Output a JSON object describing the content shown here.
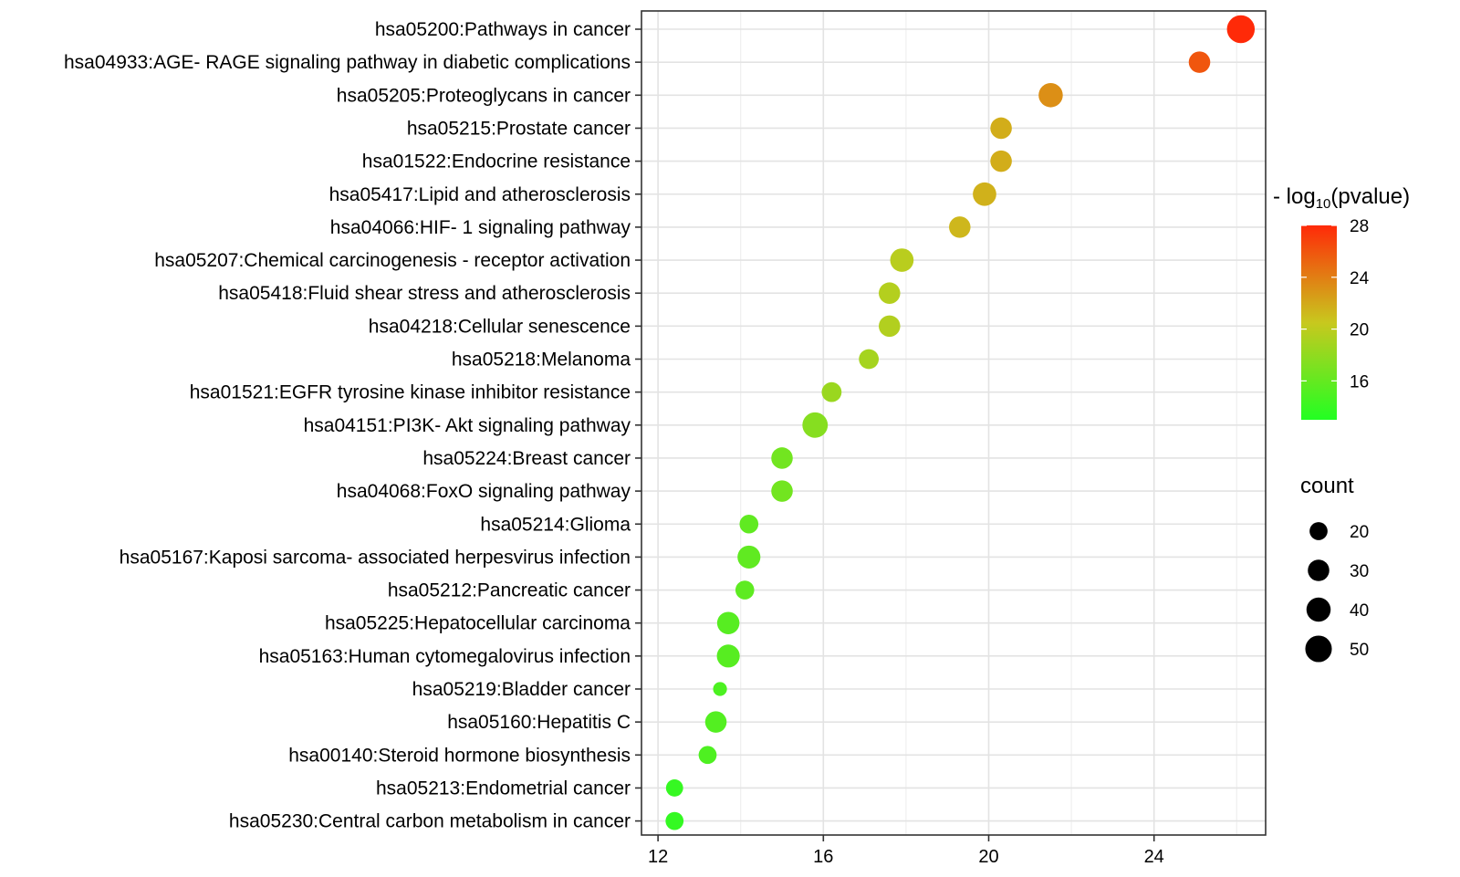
{
  "chart_data": {
    "type": "scatter",
    "subtype": "bubble",
    "title": "",
    "xlabel": "",
    "ylabel": "",
    "xlim": [
      11.6,
      26.7
    ],
    "xticks": [
      12,
      16,
      20,
      24
    ],
    "grid": true,
    "categories": [
      "hsa05200:Pathways in cancer",
      "hsa04933:AGE- RAGE signaling pathway in diabetic complications",
      "hsa05205:Proteoglycans in cancer",
      "hsa05215:Prostate cancer",
      "hsa01522:Endocrine resistance",
      "hsa05417:Lipid and atherosclerosis",
      "hsa04066:HIF- 1 signaling pathway",
      "hsa05207:Chemical carcinogenesis -  receptor activation",
      "hsa05418:Fluid shear stress and atherosclerosis",
      "hsa04218:Cellular senescence",
      "hsa05218:Melanoma",
      "hsa01521:EGFR tyrosine kinase inhibitor resistance",
      "hsa04151:PI3K- Akt signaling pathway",
      "hsa05224:Breast cancer",
      "hsa04068:FoxO signaling pathway",
      "hsa05214:Glioma",
      "hsa05167:Kaposi sarcoma- associated herpesvirus infection",
      "hsa05212:Pancreatic cancer",
      "hsa05225:Hepatocellular carcinoma",
      "hsa05163:Human cytomegalovirus infection",
      "hsa05219:Bladder cancer",
      "hsa05160:Hepatitis C",
      "hsa00140:Steroid hormone biosynthesis",
      "hsa05213:Endometrial cancer",
      "hsa05230:Central carbon metabolism in cancer"
    ],
    "x": [
      26.1,
      25.1,
      21.5,
      20.3,
      20.3,
      19.9,
      19.3,
      17.9,
      17.6,
      17.6,
      17.1,
      16.2,
      15.8,
      15.0,
      15.0,
      14.2,
      14.2,
      14.1,
      13.7,
      13.7,
      13.5,
      13.4,
      13.2,
      12.4,
      12.4
    ],
    "count": [
      56,
      30,
      40,
      30,
      30,
      37,
      30,
      37,
      30,
      30,
      25,
      25,
      45,
      30,
      30,
      22,
      35,
      22,
      33,
      35,
      12,
      30,
      20,
      18,
      20
    ],
    "neg_log10_pvalue": [
      28.0,
      25.9,
      23.2,
      21.8,
      21.8,
      21.6,
      21.3,
      19.8,
      19.6,
      19.5,
      18.9,
      18.4,
      17.5,
      16.6,
      16.6,
      15.8,
      15.8,
      15.7,
      15.4,
      15.4,
      14.9,
      15.2,
      15.0,
      13.9,
      13.8
    ],
    "color_scale": {
      "title_prefix": "- log",
      "title_sub": "10",
      "title_suffix": "(pvalue)",
      "min": 13,
      "max": 28,
      "ticks": [
        28,
        24,
        20,
        16
      ],
      "low_color": "#22ff22",
      "mid_color": "#c8c81e",
      "high_color": "#ff2a08"
    },
    "size_legend": {
      "title": "count",
      "values": [
        20,
        30,
        40,
        50
      ]
    }
  }
}
